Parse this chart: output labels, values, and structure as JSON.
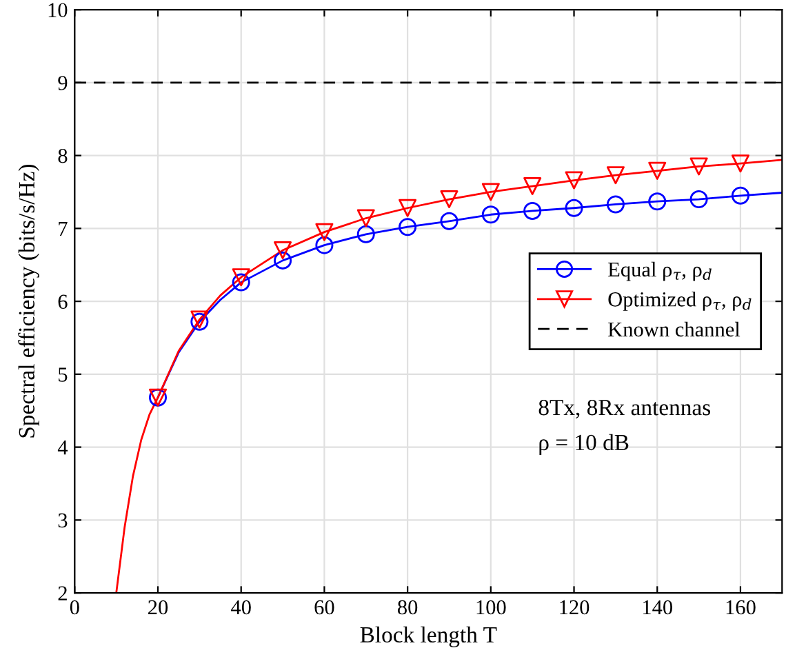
{
  "chart_data": {
    "type": "line",
    "xlabel": "Block length T",
    "ylabel": "Spectral efficiency (bits/s/Hz)",
    "xlim": [
      0,
      170
    ],
    "ylim": [
      2,
      10
    ],
    "xticks": [
      0,
      20,
      40,
      60,
      80,
      100,
      120,
      140,
      160
    ],
    "yticks": [
      2,
      3,
      4,
      5,
      6,
      7,
      8,
      9,
      10
    ],
    "grid": true,
    "legend": "center right",
    "series": [
      {
        "name": "Equal ρ$_{τ}$, ρ$_{d}$",
        "color": "#0000ff",
        "marker": "none",
        "x": [
          20,
          25,
          30,
          35,
          40,
          50,
          60,
          70,
          80,
          90,
          100,
          110,
          120,
          130,
          140,
          150,
          160,
          170
        ],
        "values": [
          4.68,
          5.3,
          5.72,
          6.02,
          6.26,
          6.56,
          6.77,
          6.92,
          7.02,
          7.1,
          7.19,
          7.24,
          7.28,
          7.33,
          7.37,
          7.4,
          7.45,
          7.49
        ]
      },
      {
        "color": "#0000ff",
        "type": "scatter",
        "marker": "circle",
        "x": [
          20,
          30,
          40,
          50,
          60,
          70,
          80,
          90,
          100,
          110,
          120,
          130,
          140,
          150,
          160
        ],
        "values": [
          4.68,
          5.72,
          6.26,
          6.56,
          6.77,
          6.92,
          7.02,
          7.1,
          7.19,
          7.24,
          7.28,
          7.33,
          7.37,
          7.4,
          7.45
        ]
      },
      {
        "name": "Optimized ρ$_{τ}$, ρ$_{d}$",
        "color": "#ff0000",
        "marker": "none",
        "x": [
          10,
          12,
          14,
          16,
          18,
          20,
          25,
          30,
          35,
          40,
          50,
          60,
          70,
          80,
          90,
          100,
          110,
          120,
          130,
          140,
          150,
          160,
          170
        ],
        "values": [
          2.0,
          2.9,
          3.6,
          4.1,
          4.45,
          4.68,
          5.32,
          5.75,
          6.08,
          6.33,
          6.7,
          6.95,
          7.14,
          7.28,
          7.4,
          7.5,
          7.58,
          7.66,
          7.73,
          7.79,
          7.85,
          7.89,
          7.94
        ]
      },
      {
        "color": "#ff0000",
        "type": "scatter",
        "marker": "triangle",
        "x": [
          20,
          30,
          40,
          50,
          60,
          70,
          80,
          90,
          100,
          110,
          120,
          130,
          140,
          150,
          160
        ],
        "values": [
          4.68,
          5.75,
          6.33,
          6.7,
          6.95,
          7.14,
          7.28,
          7.4,
          7.5,
          7.58,
          7.66,
          7.73,
          7.79,
          7.85,
          7.89
        ]
      }
    ],
    "ref_lines": [
      {
        "axis": "y",
        "value": 9,
        "label": "Known channel",
        "color": "#000000",
        "line_style": "dashed"
      }
    ],
    "annotations": [
      "8Tx, 8Rx antennas",
      "ρ = 10 dB"
    ]
  }
}
